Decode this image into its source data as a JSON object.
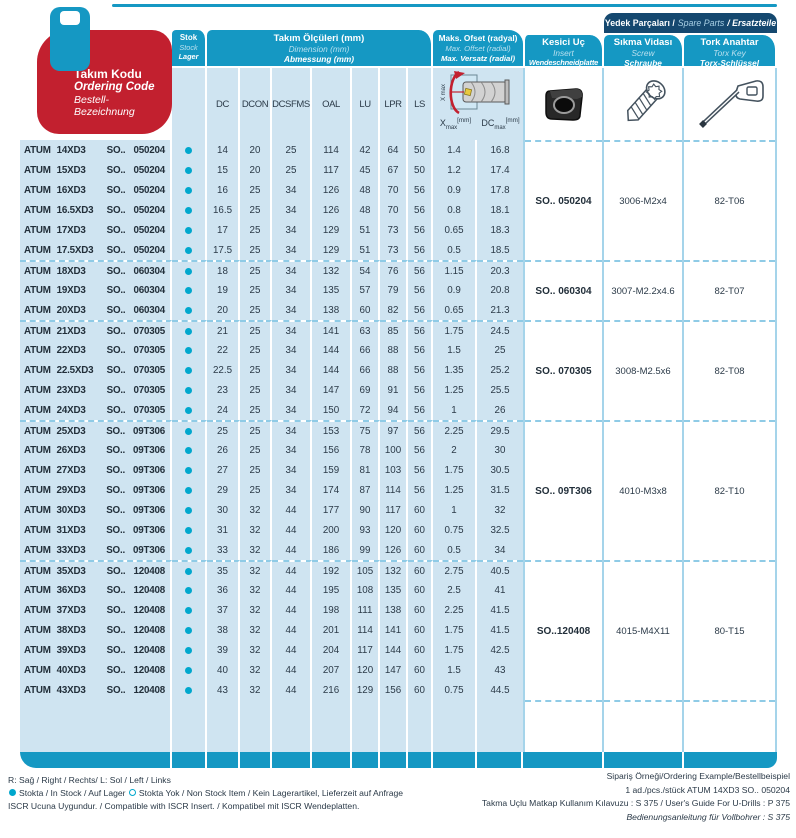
{
  "title": {
    "tr": "Takım Kodu",
    "en": "Ordering Code",
    "de": "Bestell-Bezeichnung"
  },
  "columns": {
    "stock": {
      "tr": "Stok",
      "en": "Stock",
      "de": "Lager"
    },
    "dimensions": {
      "tr": "Takım Ölçüleri (mm)",
      "en": "Dimension (mm)",
      "de": "Abmessung (mm)",
      "labels": [
        "DC",
        "DCON",
        "DCSFMS",
        "OAL",
        "LU",
        "LPR",
        "LS"
      ]
    },
    "offset": {
      "tr": "Maks. Ofset (radyal)",
      "en": "Max. Offset (radial)",
      "de": "Max. Versatz (radial)",
      "xmax_base": "X",
      "xmax_sub": "max",
      "dcmax_base": "DC",
      "dcmax_sub": "max",
      "unit": "[mm]"
    },
    "insert": {
      "tr": "Kesici Uç",
      "en": "Insert",
      "de": "Wendeschneidplatte"
    },
    "spare_parts": {
      "tr": "Yedek Parçaları /",
      "en": "Spare Parts",
      "de": "/ Ersatzteile"
    },
    "screw": {
      "tr": "Sıkma Vidası",
      "en": "Screw",
      "de": "Schraube"
    },
    "torx": {
      "tr": "Tork Anahtar",
      "en": "Torx Key",
      "de": "Torx-Schlüssel"
    }
  },
  "groups": [
    {
      "insert": "SO.. 050204",
      "screw": "3006-M2x4",
      "torx": "82-T06",
      "rows": [
        {
          "code": [
            "ATUM",
            "14XD3",
            "SO..",
            "050204"
          ],
          "stock": "in",
          "vals": [
            "14",
            "20",
            "25",
            "114",
            "42",
            "64",
            "50",
            "1.4",
            "16.8"
          ]
        },
        {
          "code": [
            "ATUM",
            "15XD3",
            "SO..",
            "050204"
          ],
          "stock": "in",
          "vals": [
            "15",
            "20",
            "25",
            "117",
            "45",
            "67",
            "50",
            "1.2",
            "17.4"
          ]
        },
        {
          "code": [
            "ATUM",
            "16XD3",
            "SO..",
            "050204"
          ],
          "stock": "in",
          "vals": [
            "16",
            "25",
            "34",
            "126",
            "48",
            "70",
            "56",
            "0.9",
            "17.8"
          ]
        },
        {
          "code": [
            "ATUM",
            "16.5XD3",
            "SO..",
            "050204"
          ],
          "stock": "in",
          "vals": [
            "16.5",
            "25",
            "34",
            "126",
            "48",
            "70",
            "56",
            "0.8",
            "18.1"
          ]
        },
        {
          "code": [
            "ATUM",
            "17XD3",
            "SO..",
            "050204"
          ],
          "stock": "in",
          "vals": [
            "17",
            "25",
            "34",
            "129",
            "51",
            "73",
            "56",
            "0.65",
            "18.3"
          ]
        },
        {
          "code": [
            "ATUM",
            "17.5XD3",
            "SO..",
            "050204"
          ],
          "stock": "in",
          "vals": [
            "17.5",
            "25",
            "34",
            "129",
            "51",
            "73",
            "56",
            "0.5",
            "18.5"
          ]
        }
      ]
    },
    {
      "insert": "SO.. 060304",
      "screw": "3007-M2.2x4.6",
      "torx": "82-T07",
      "rows": [
        {
          "code": [
            "ATUM",
            "18XD3",
            "SO..",
            "060304"
          ],
          "stock": "in",
          "vals": [
            "18",
            "25",
            "34",
            "132",
            "54",
            "76",
            "56",
            "1.15",
            "20.3"
          ]
        },
        {
          "code": [
            "ATUM",
            "19XD3",
            "SO..",
            "060304"
          ],
          "stock": "in",
          "vals": [
            "19",
            "25",
            "34",
            "135",
            "57",
            "79",
            "56",
            "0.9",
            "20.8"
          ]
        },
        {
          "code": [
            "ATUM",
            "20XD3",
            "SO..",
            "060304"
          ],
          "stock": "in",
          "vals": [
            "20",
            "25",
            "34",
            "138",
            "60",
            "82",
            "56",
            "0.65",
            "21.3"
          ]
        }
      ]
    },
    {
      "insert": "SO.. 070305",
      "screw": "3008-M2.5x6",
      "torx": "82-T08",
      "rows": [
        {
          "code": [
            "ATUM",
            "21XD3",
            "SO..",
            "070305"
          ],
          "stock": "in",
          "vals": [
            "21",
            "25",
            "34",
            "141",
            "63",
            "85",
            "56",
            "1.75",
            "24.5"
          ]
        },
        {
          "code": [
            "ATUM",
            "22XD3",
            "SO..",
            "070305"
          ],
          "stock": "in",
          "vals": [
            "22",
            "25",
            "34",
            "144",
            "66",
            "88",
            "56",
            "1.5",
            "25"
          ]
        },
        {
          "code": [
            "ATUM",
            "22.5XD3",
            "SO..",
            "070305"
          ],
          "stock": "in",
          "vals": [
            "22.5",
            "25",
            "34",
            "144",
            "66",
            "88",
            "56",
            "1.35",
            "25.2"
          ]
        },
        {
          "code": [
            "ATUM",
            "23XD3",
            "SO..",
            "070305"
          ],
          "stock": "in",
          "vals": [
            "23",
            "25",
            "34",
            "147",
            "69",
            "91",
            "56",
            "1.25",
            "25.5"
          ]
        },
        {
          "code": [
            "ATUM",
            "24XD3",
            "SO..",
            "070305"
          ],
          "stock": "in",
          "vals": [
            "24",
            "25",
            "34",
            "150",
            "72",
            "94",
            "56",
            "1",
            "26"
          ]
        }
      ]
    },
    {
      "insert": "SO.. 09T306",
      "screw": "4010-M3x8",
      "torx": "82-T10",
      "rows": [
        {
          "code": [
            "ATUM",
            "25XD3",
            "SO..",
            "09T306"
          ],
          "stock": "in",
          "vals": [
            "25",
            "25",
            "34",
            "153",
            "75",
            "97",
            "56",
            "2.25",
            "29.5"
          ]
        },
        {
          "code": [
            "ATUM",
            "26XD3",
            "SO..",
            "09T306"
          ],
          "stock": "in",
          "vals": [
            "26",
            "25",
            "34",
            "156",
            "78",
            "100",
            "56",
            "2",
            "30"
          ]
        },
        {
          "code": [
            "ATUM",
            "27XD3",
            "SO..",
            "09T306"
          ],
          "stock": "in",
          "vals": [
            "27",
            "25",
            "34",
            "159",
            "81",
            "103",
            "56",
            "1.75",
            "30.5"
          ]
        },
        {
          "code": [
            "ATUM",
            "29XD3",
            "SO..",
            "09T306"
          ],
          "stock": "in",
          "vals": [
            "29",
            "25",
            "34",
            "174",
            "87",
            "114",
            "56",
            "1.25",
            "31.5"
          ]
        },
        {
          "code": [
            "ATUM",
            "30XD3",
            "SO..",
            "09T306"
          ],
          "stock": "in",
          "vals": [
            "30",
            "32",
            "44",
            "177",
            "90",
            "117",
            "60",
            "1",
            "32"
          ]
        },
        {
          "code": [
            "ATUM",
            "31XD3",
            "SO..",
            "09T306"
          ],
          "stock": "in",
          "vals": [
            "31",
            "32",
            "44",
            "200",
            "93",
            "120",
            "60",
            "0.75",
            "32.5"
          ]
        },
        {
          "code": [
            "ATUM",
            "33XD3",
            "SO..",
            "09T306"
          ],
          "stock": "in",
          "vals": [
            "33",
            "32",
            "44",
            "186",
            "99",
            "126",
            "60",
            "0.5",
            "34"
          ]
        }
      ]
    },
    {
      "insert": "SO..120408",
      "screw": "4015-M4X11",
      "torx": "80-T15",
      "rows": [
        {
          "code": [
            "ATUM",
            "35XD3",
            "SO..",
            "120408"
          ],
          "stock": "in",
          "vals": [
            "35",
            "32",
            "44",
            "192",
            "105",
            "132",
            "60",
            "2.75",
            "40.5"
          ]
        },
        {
          "code": [
            "ATUM",
            "36XD3",
            "SO..",
            "120408"
          ],
          "stock": "in",
          "vals": [
            "36",
            "32",
            "44",
            "195",
            "108",
            "135",
            "60",
            "2.5",
            "41"
          ]
        },
        {
          "code": [
            "ATUM",
            "37XD3",
            "SO..",
            "120408"
          ],
          "stock": "in",
          "vals": [
            "37",
            "32",
            "44",
            "198",
            "111",
            "138",
            "60",
            "2.25",
            "41.5"
          ]
        },
        {
          "code": [
            "ATUM",
            "38XD3",
            "SO..",
            "120408"
          ],
          "stock": "in",
          "vals": [
            "38",
            "32",
            "44",
            "201",
            "114",
            "141",
            "60",
            "1.75",
            "41.5"
          ]
        },
        {
          "code": [
            "ATUM",
            "39XD3",
            "SO..",
            "120408"
          ],
          "stock": "in",
          "vals": [
            "39",
            "32",
            "44",
            "204",
            "117",
            "144",
            "60",
            "1.75",
            "42.5"
          ]
        },
        {
          "code": [
            "ATUM",
            "40XD3",
            "SO..",
            "120408"
          ],
          "stock": "in",
          "vals": [
            "40",
            "32",
            "44",
            "207",
            "120",
            "147",
            "60",
            "1.5",
            "43"
          ]
        },
        {
          "code": [
            "ATUM",
            "43XD3",
            "SO..",
            "120408"
          ],
          "stock": "in",
          "vals": [
            "43",
            "32",
            "44",
            "216",
            "129",
            "156",
            "60",
            "0.75",
            "44.5"
          ]
        }
      ]
    }
  ],
  "footer": {
    "left_line1": "R: Sağ / Right / Rechts/  L: Sol / Left / Links",
    "stock_in": "Stokta / In Stock / Auf Lager",
    "stock_out": "Stokta Yok / Non Stock Item / Kein Lagerartikel, Lieferzeit auf Anfrage",
    "left_line3": "ISCR Ucuna Uygundur. / Compatible with ISCR Insert. / Kompatibel mit ISCR Wendeplatten.",
    "right_line1": "Sipariş Örneği/Ordering Example/Bestellbeispiel",
    "right_line2": "1 ad./pcs./stück  ATUM 14XD3 SO.. 050204",
    "right_line3": "Takma Uçlu Matkap Kullanım Kılavuzu : S 375 / User's Guide For U-Drills : P 375",
    "right_line4": "Bedienungsanleitung für Vollbohrer : S 375"
  },
  "colors": {
    "teal": "#1598c3",
    "navy": "#15486f",
    "red": "#c2202f",
    "cell_blue": "#cfe4f1",
    "dot_cyan": "#00a7cd",
    "line_blue": "#a5d4ea",
    "dash_blue": "#8fcbe6",
    "text_dark": "#2b3a48"
  }
}
